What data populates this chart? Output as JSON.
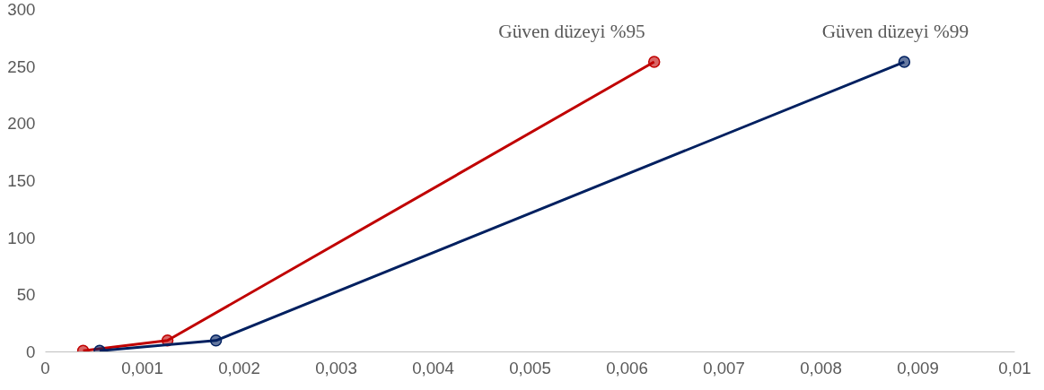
{
  "chart_data": {
    "type": "line",
    "marker": "circle",
    "line_style": "solid",
    "grid": false,
    "xlim": [
      0,
      0.01
    ],
    "xticks": [
      {
        "value": 0,
        "label": "0"
      },
      {
        "value": 0.001,
        "label": "0,001"
      },
      {
        "value": 0.002,
        "label": "0,002"
      },
      {
        "value": 0.003,
        "label": "0,003"
      },
      {
        "value": 0.004,
        "label": "0,004"
      },
      {
        "value": 0.005,
        "label": "0,005"
      },
      {
        "value": 0.006,
        "label": "0,006"
      },
      {
        "value": 0.007,
        "label": "0,007"
      },
      {
        "value": 0.008,
        "label": "0,008"
      },
      {
        "value": 0.009,
        "label": "0,009"
      },
      {
        "value": 0.01,
        "label": "0,01"
      }
    ],
    "ylim": [
      0,
      300
    ],
    "yticks": [
      0,
      50,
      100,
      150,
      200,
      250,
      300
    ],
    "series": [
      {
        "name": "Güven düzeyi %95",
        "color": "#c00000",
        "x": [
          0.00039,
          0.00126,
          0.00628
        ],
        "values": [
          1,
          10,
          254
        ]
      },
      {
        "name": "Güven düzeyi %99",
        "color": "#002060",
        "x": [
          0.00056,
          0.00176,
          0.00886
        ],
        "values": [
          1,
          10,
          254
        ]
      }
    ]
  }
}
